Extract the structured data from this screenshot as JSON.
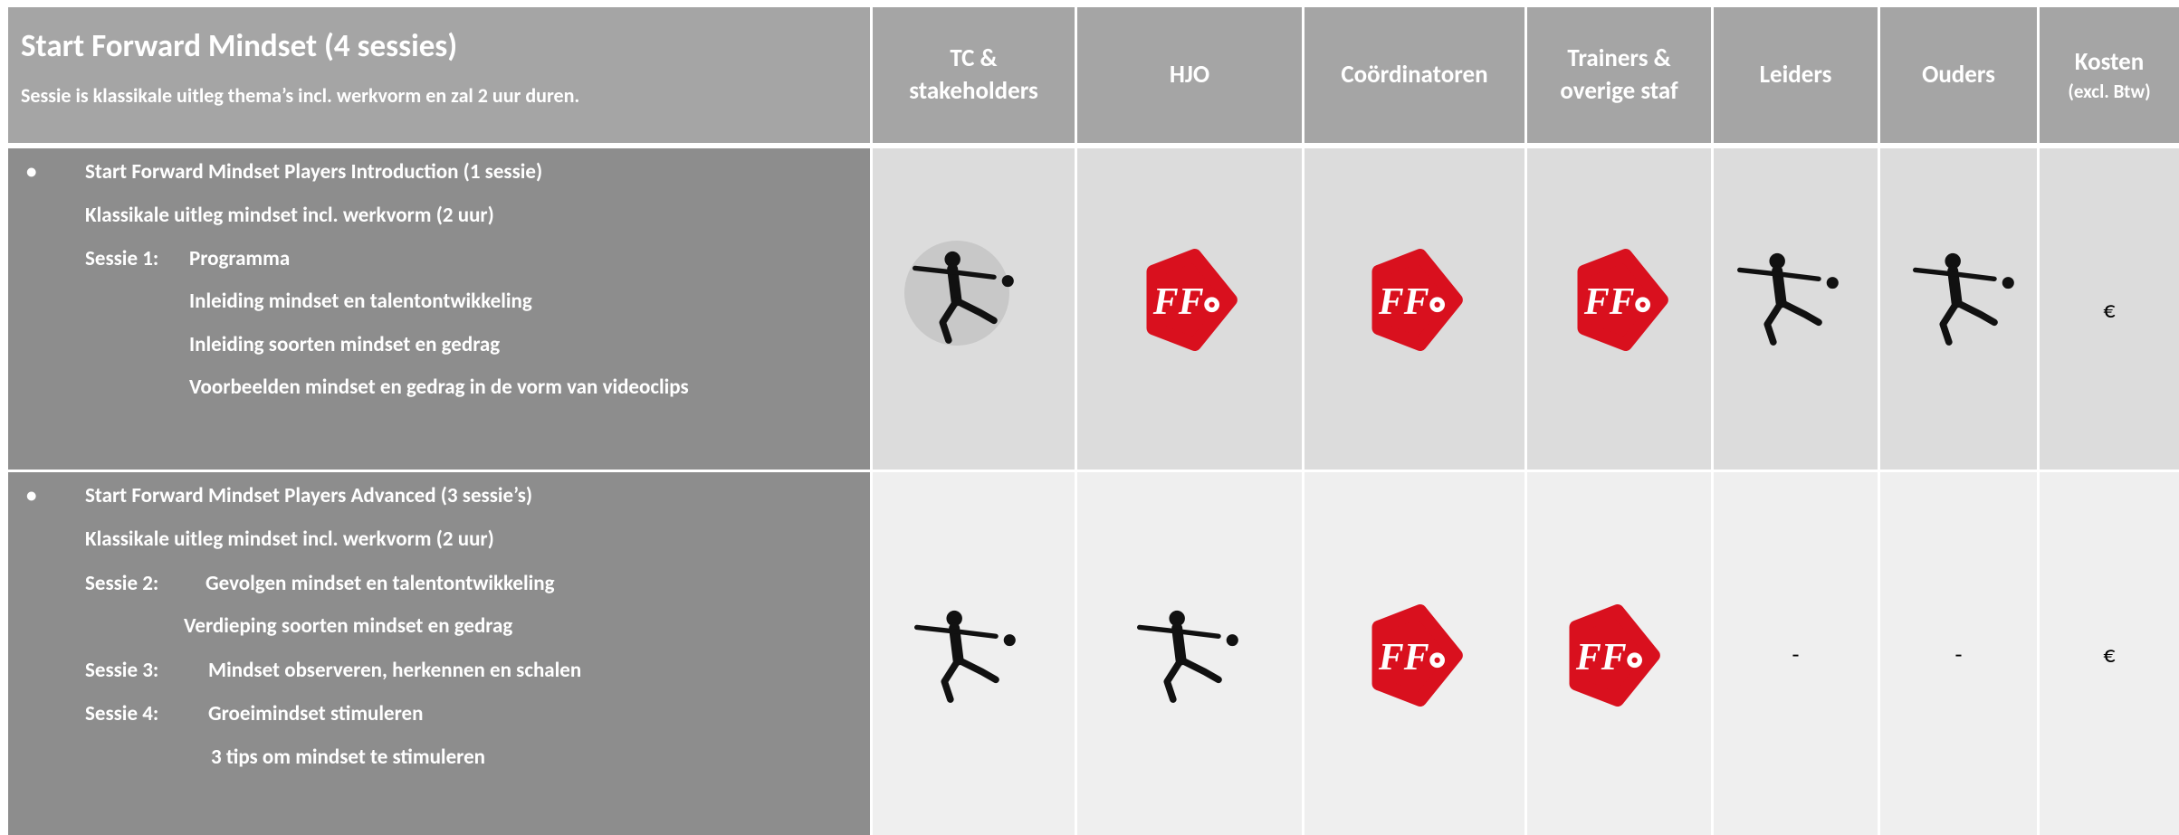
{
  "header": {
    "title": "Start Forward Mindset (4 sessies)",
    "subtitle": "Sessie is klassikale uitleg thema’s incl. werkvorm en zal 2 uur duren.",
    "columns": [
      [
        "TC &",
        "stakeholders"
      ],
      [
        "HJO"
      ],
      [
        "Coördinatoren"
      ],
      [
        "Trainers &",
        "overige staf"
      ],
      [
        "Leiders"
      ],
      [
        "Ouders"
      ],
      [
        "Kosten",
        "(excl. Btw)"
      ]
    ]
  },
  "rows": [
    {
      "bullet": "•",
      "lines": [
        "Start Forward Mindset Players Introduction (1 sessie)",
        "Klassikale uitleg mindset incl. werkvorm (2 uur)",
        [
          "Sessie 1:",
          "Programma"
        ],
        "Inleiding mindset en talentontwikkeling",
        "Inleiding soorten mindset  en gedrag",
        "Voorbeelden mindset en gedrag in de vorm van videoclips"
      ],
      "cost": "€"
    },
    {
      "bullet": "•",
      "lines": [
        "Start Forward Mindset Players Advanced (3 sessie’s)",
        "Klassikale uitleg mindset incl. werkvorm (2 uur)",
        [
          "Sessie 2:",
          "Gevolgen mindset en talentontwikkeling"
        ],
        "Verdieping soorten mindset en gedrag",
        [
          "Sessie 3:",
          "Mindset observeren, herkennen en schalen"
        ],
        [
          "Sessie 4:",
          "Groeimindset stimuleren"
        ],
        "3 tips om mindset te stimuleren"
      ],
      "leiders": "-",
      "ouders": "-",
      "cost": "€"
    }
  ]
}
